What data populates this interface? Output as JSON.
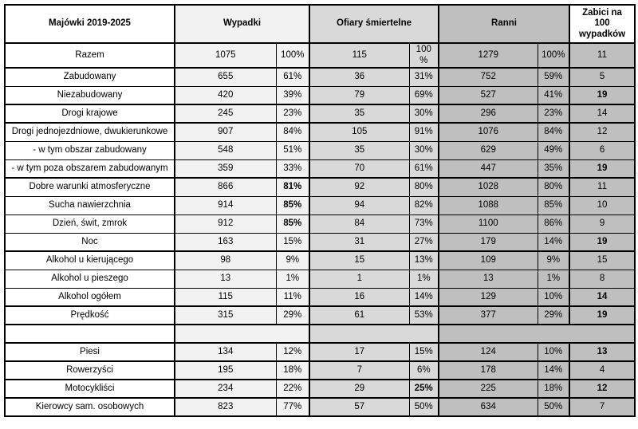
{
  "colors": {
    "light": "#f2f2f2",
    "mid": "#d9d9d9",
    "dark": "#bfbfbf",
    "border": "#000000"
  },
  "header": {
    "row_label_col": "Majówki 2019-2025",
    "wypadki": "Wypadki",
    "ofiary": "Ofiary śmiertelne",
    "ranni": "Ranni",
    "zabici": "Zabici na 100 wypadków"
  },
  "rows": [
    {
      "label": "Razem",
      "cells": [
        {
          "v": "1075"
        },
        {
          "v": "100%"
        },
        {
          "v": "115"
        },
        {
          "v": "100 %"
        },
        {
          "v": "1279"
        },
        {
          "v": "100%"
        },
        {
          "v": "11"
        }
      ]
    },
    {
      "label": "Zabudowany",
      "group_start": true,
      "cells": [
        {
          "v": "655"
        },
        {
          "v": "61%"
        },
        {
          "v": "36"
        },
        {
          "v": "31%"
        },
        {
          "v": "752"
        },
        {
          "v": "59%"
        },
        {
          "v": "5"
        }
      ]
    },
    {
      "label": "Niezabudowany",
      "cells": [
        {
          "v": "420"
        },
        {
          "v": "39%"
        },
        {
          "v": "79"
        },
        {
          "v": "69%"
        },
        {
          "v": "527"
        },
        {
          "v": "41%"
        },
        {
          "v": "19",
          "bold": true
        }
      ]
    },
    {
      "label": "Drogi krajowe",
      "group_start": true,
      "cells": [
        {
          "v": "245"
        },
        {
          "v": "23%"
        },
        {
          "v": "35"
        },
        {
          "v": "30%"
        },
        {
          "v": "296"
        },
        {
          "v": "23%"
        },
        {
          "v": "14"
        }
      ]
    },
    {
      "label": "Drogi jednojezdniowe, dwukierunkowe",
      "group_start": true,
      "cells": [
        {
          "v": "907"
        },
        {
          "v": "84%"
        },
        {
          "v": "105"
        },
        {
          "v": "91%"
        },
        {
          "v": "1076"
        },
        {
          "v": "84%"
        },
        {
          "v": "12"
        }
      ]
    },
    {
      "label": "- w tym obszar zabudowany",
      "cells": [
        {
          "v": "548"
        },
        {
          "v": "51%"
        },
        {
          "v": "35"
        },
        {
          "v": "30%"
        },
        {
          "v": "629"
        },
        {
          "v": "49%"
        },
        {
          "v": "6"
        }
      ]
    },
    {
      "label": "- w tym poza obszarem zabudowanym",
      "cells": [
        {
          "v": "359"
        },
        {
          "v": "33%"
        },
        {
          "v": "70"
        },
        {
          "v": "61%"
        },
        {
          "v": "447"
        },
        {
          "v": "35%"
        },
        {
          "v": "19",
          "bold": true
        }
      ]
    },
    {
      "label": "Dobre warunki atmosferyczne",
      "group_start": true,
      "cells": [
        {
          "v": "866"
        },
        {
          "v": "81%",
          "bold": true
        },
        {
          "v": "92"
        },
        {
          "v": "80%"
        },
        {
          "v": "1028"
        },
        {
          "v": "80%"
        },
        {
          "v": "11"
        }
      ]
    },
    {
      "label": "Sucha nawierzchnia",
      "cells": [
        {
          "v": "914"
        },
        {
          "v": "85%",
          "bold": true
        },
        {
          "v": "94"
        },
        {
          "v": "82%"
        },
        {
          "v": "1088"
        },
        {
          "v": "85%"
        },
        {
          "v": "10"
        }
      ]
    },
    {
      "label": "Dzień, świt, zmrok",
      "cells": [
        {
          "v": "912"
        },
        {
          "v": "85%",
          "bold": true
        },
        {
          "v": "84"
        },
        {
          "v": "73%"
        },
        {
          "v": "1100"
        },
        {
          "v": "86%"
        },
        {
          "v": "9"
        }
      ]
    },
    {
      "label": "Noc",
      "cells": [
        {
          "v": "163"
        },
        {
          "v": "15%"
        },
        {
          "v": "31"
        },
        {
          "v": "27%"
        },
        {
          "v": "179"
        },
        {
          "v": "14%"
        },
        {
          "v": "19",
          "bold": true
        }
      ]
    },
    {
      "label": "Alkohol u kierującego",
      "group_start": true,
      "cells": [
        {
          "v": "98"
        },
        {
          "v": "9%"
        },
        {
          "v": "15"
        },
        {
          "v": "13%"
        },
        {
          "v": "109"
        },
        {
          "v": "9%"
        },
        {
          "v": "15"
        }
      ]
    },
    {
      "label": "Alkohol u pieszego",
      "cells": [
        {
          "v": "13"
        },
        {
          "v": "1%"
        },
        {
          "v": "1"
        },
        {
          "v": "1%"
        },
        {
          "v": "13"
        },
        {
          "v": "1%"
        },
        {
          "v": "8"
        }
      ]
    },
    {
      "label": "Alkohol ogółem",
      "cells": [
        {
          "v": "115"
        },
        {
          "v": "11%"
        },
        {
          "v": "16"
        },
        {
          "v": "14%"
        },
        {
          "v": "129"
        },
        {
          "v": "10%"
        },
        {
          "v": "14",
          "bold": true
        }
      ]
    },
    {
      "label": "Prędkość",
      "group_start": true,
      "cells": [
        {
          "v": "315"
        },
        {
          "v": "29%"
        },
        {
          "v": "61"
        },
        {
          "v": "53%"
        },
        {
          "v": "377"
        },
        {
          "v": "29%"
        },
        {
          "v": "19",
          "bold": true
        }
      ]
    },
    {
      "label": "",
      "group_start": true,
      "empty": true,
      "cells": []
    },
    {
      "label": "Piesi",
      "group_start": true,
      "cells": [
        {
          "v": "134"
        },
        {
          "v": "12%"
        },
        {
          "v": "17"
        },
        {
          "v": "15%"
        },
        {
          "v": "124"
        },
        {
          "v": "10%"
        },
        {
          "v": "13",
          "bold": true
        }
      ]
    },
    {
      "label": "Rowerzyści",
      "group_start": true,
      "cells": [
        {
          "v": "195"
        },
        {
          "v": "18%"
        },
        {
          "v": "7"
        },
        {
          "v": "6%"
        },
        {
          "v": "178"
        },
        {
          "v": "14%"
        },
        {
          "v": "4"
        }
      ]
    },
    {
      "label": "Motocykliści",
      "group_start": true,
      "cells": [
        {
          "v": "234"
        },
        {
          "v": "22%"
        },
        {
          "v": "29"
        },
        {
          "v": "25%",
          "bold": true
        },
        {
          "v": "225"
        },
        {
          "v": "18%"
        },
        {
          "v": "12",
          "bold": true
        }
      ]
    },
    {
      "label": "Kierowcy sam. osobowych",
      "group_start": true,
      "cells": [
        {
          "v": "823"
        },
        {
          "v": "77%"
        },
        {
          "v": "57"
        },
        {
          "v": "50%"
        },
        {
          "v": "634"
        },
        {
          "v": "50%"
        },
        {
          "v": "7"
        }
      ]
    }
  ]
}
